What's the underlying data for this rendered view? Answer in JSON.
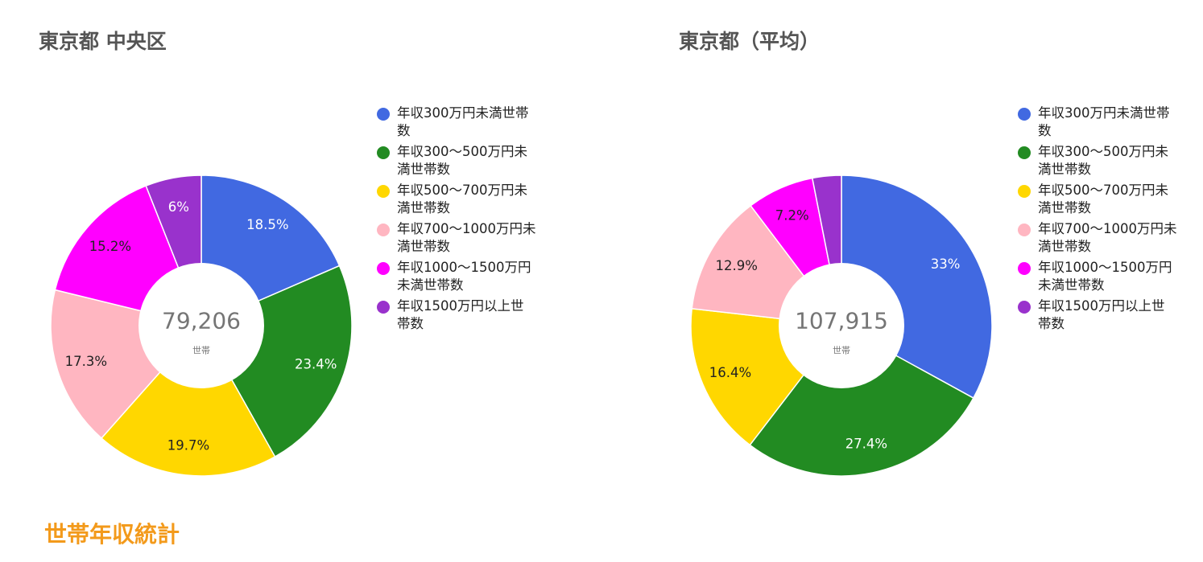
{
  "charts": [
    {
      "title": "東京都 中央区",
      "center_value": "79,206",
      "center_unit": "世帯",
      "slice_labels": [
        "18.5%",
        "23.4%",
        "19.7%",
        "17.3%",
        "15.2%",
        "6%"
      ]
    },
    {
      "title": "東京都（平均）",
      "center_value": "107,915",
      "center_unit": "世帯",
      "slice_labels": [
        "33%",
        "27.4%",
        "16.4%",
        "12.9%",
        "7.2%",
        ""
      ]
    }
  ],
  "legend": [
    {
      "line1": "年収300万円未満世帯",
      "line2": "数",
      "color": "#4169e1"
    },
    {
      "line1": "年収300～500万円未",
      "line2": "満世帯数",
      "color": "#228b22"
    },
    {
      "line1": "年収500～700万円未",
      "line2": "満世帯数",
      "color": "#ffd700"
    },
    {
      "line1": "年収700～1000万円未",
      "line2": "満世帯数",
      "color": "#ffb6c1"
    },
    {
      "line1": "年収1000～1500万円",
      "line2": "未満世帯数",
      "color": "#ff00ff"
    },
    {
      "line1": "年収1500万円以上世",
      "line2": "帯数",
      "color": "#9932cc"
    }
  ],
  "section_heading": "世帯年収統計",
  "chart_data": [
    {
      "type": "pie",
      "title": "東京都 中央区",
      "categories": [
        "年収300万円未満世帯数",
        "年収300～500万円未満世帯数",
        "年収500～700万円未満世帯数",
        "年収700～1000万円未満世帯数",
        "年収1000～1500万円未満世帯数",
        "年収1500万円以上世帯数"
      ],
      "values": [
        18.5,
        23.4,
        19.7,
        17.3,
        15.2,
        6
      ],
      "colors": [
        "#4169e1",
        "#228b22",
        "#ffd700",
        "#ffb6c1",
        "#ff00ff",
        "#9932cc"
      ],
      "donut": true,
      "center_value": "79,206",
      "center_unit": "世帯",
      "legend_position": "right"
    },
    {
      "type": "pie",
      "title": "東京都（平均）",
      "categories": [
        "年収300万円未満世帯数",
        "年収300～500万円未満世帯数",
        "年収500～700万円未満世帯数",
        "年収700～1000万円未満世帯数",
        "年収1000～1500万円未満世帯数",
        "年収1500万円以上世帯数"
      ],
      "values": [
        33,
        27.4,
        16.4,
        12.9,
        7.2,
        3.1
      ],
      "colors": [
        "#4169e1",
        "#228b22",
        "#ffd700",
        "#ffb6c1",
        "#ff00ff",
        "#9932cc"
      ],
      "donut": true,
      "center_value": "107,915",
      "center_unit": "世帯",
      "legend_position": "right"
    }
  ]
}
